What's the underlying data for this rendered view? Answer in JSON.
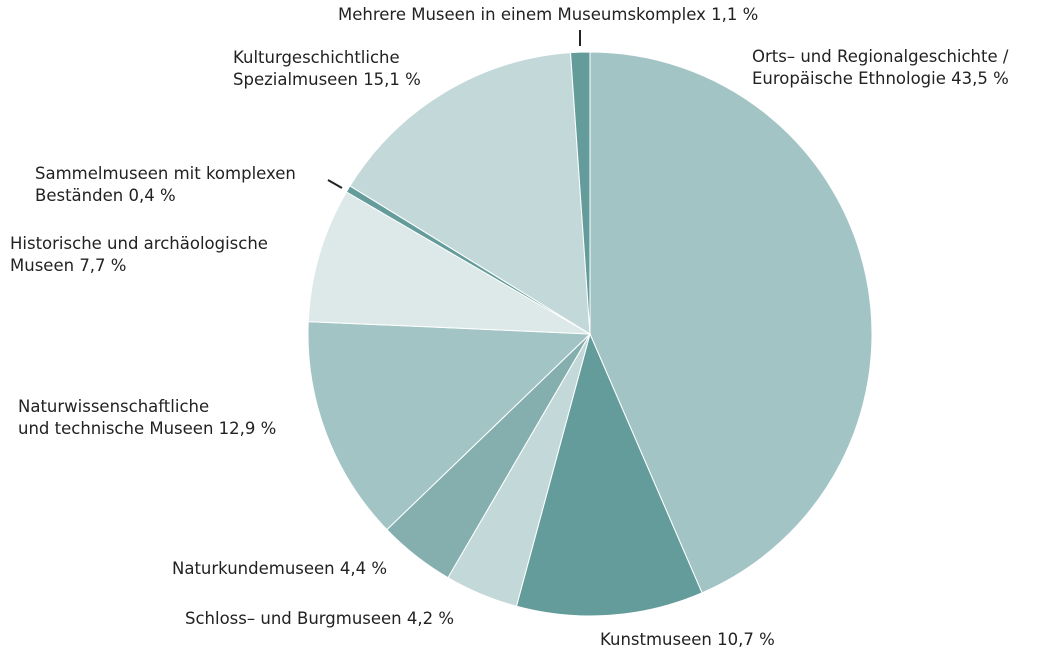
{
  "chart_data": {
    "type": "pie",
    "categories": [
      [
        "Orts– und Regionalgeschichte /",
        "Europäische Ethnologie"
      ],
      [
        "Kunstmuseen"
      ],
      [
        "Schloss– und Burgmuseen"
      ],
      [
        "Naturkundemuseen"
      ],
      [
        "Naturwissenschaftliche",
        "und technische Museen"
      ],
      [
        "Historische und archäologische",
        "Museen"
      ],
      [
        "Sammelmuseen mit komplexen",
        "Beständen"
      ],
      [
        "Kulturgeschichtliche",
        "Spezialmuseen"
      ],
      [
        "Mehrere Museen in einem Museumskomplex"
      ]
    ],
    "values": [
      43.5,
      10.7,
      4.2,
      4.4,
      12.9,
      7.7,
      0.4,
      15.1,
      1.1
    ],
    "value_labels": [
      "43,5 %",
      "10,7 %",
      "4,2 %",
      "4,4 %",
      "12,9 %",
      "7,7 %",
      "0,4 %",
      "15,1 %",
      "1,1 %"
    ],
    "colors": [
      "#a3c4c4",
      "#649c9c",
      "#c3d8d8",
      "#85afaf",
      "#a3c4c4",
      "#dde9e9",
      "#649c9c",
      "#c3d8d8",
      "#649c9c"
    ]
  }
}
